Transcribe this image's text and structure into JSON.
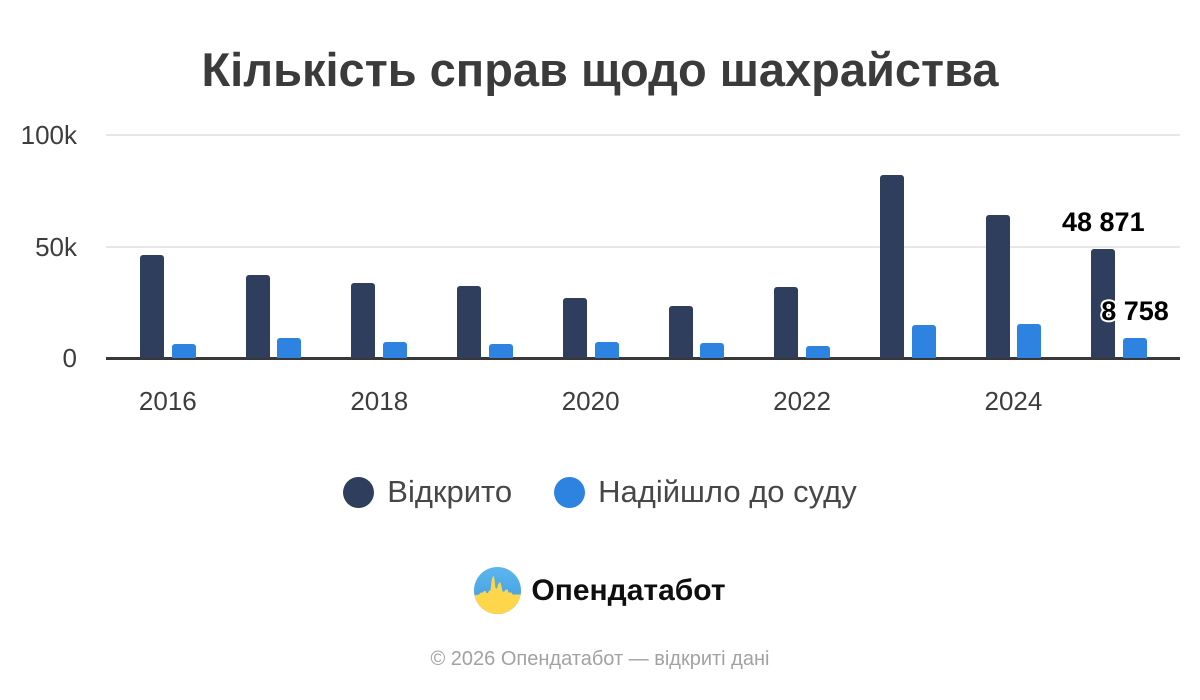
{
  "title": "Кількість справ щодо шахрайства",
  "chart_data": {
    "type": "bar",
    "categories": [
      "2016",
      "2017",
      "2018",
      "2019",
      "2020",
      "2021",
      "2022",
      "2023",
      "2024",
      "2025"
    ],
    "x_tick_labels": [
      "2016",
      "2018",
      "2020",
      "2022",
      "2024"
    ],
    "series": [
      {
        "name": "Відкрито",
        "color": "#2e3e5c",
        "values": [
          46100,
          37300,
          33600,
          32100,
          26800,
          23300,
          31700,
          82200,
          64100,
          48871
        ]
      },
      {
        "name": "Надійшло до суду",
        "color": "#2f83e0",
        "values": [
          6400,
          8800,
          7200,
          6400,
          7200,
          6800,
          5500,
          14900,
          15300,
          8758
        ]
      }
    ],
    "ylim": [
      0,
      100000
    ],
    "y_ticks": [
      {
        "value": 0,
        "label": "0"
      },
      {
        "value": 50000,
        "label": "50k"
      },
      {
        "value": 100000,
        "label": "100k"
      }
    ],
    "grid": "horizontal",
    "legend_position": "bottom",
    "annotations": [
      {
        "series": "Відкрито",
        "category": "2025",
        "label": "48 871"
      },
      {
        "series": "Надійшло до суду",
        "category": "2025",
        "label": "8 758"
      }
    ]
  },
  "branding": {
    "logo_text": "Опендатабот",
    "logo_icon": "opendatabot-pulse-icon",
    "colors": {
      "flag_blue": "#4aa6e4",
      "flag_yellow": "#fdd64b"
    }
  },
  "footer": {
    "copyright": "© 2026 Опендатабот — відкриті дані"
  }
}
